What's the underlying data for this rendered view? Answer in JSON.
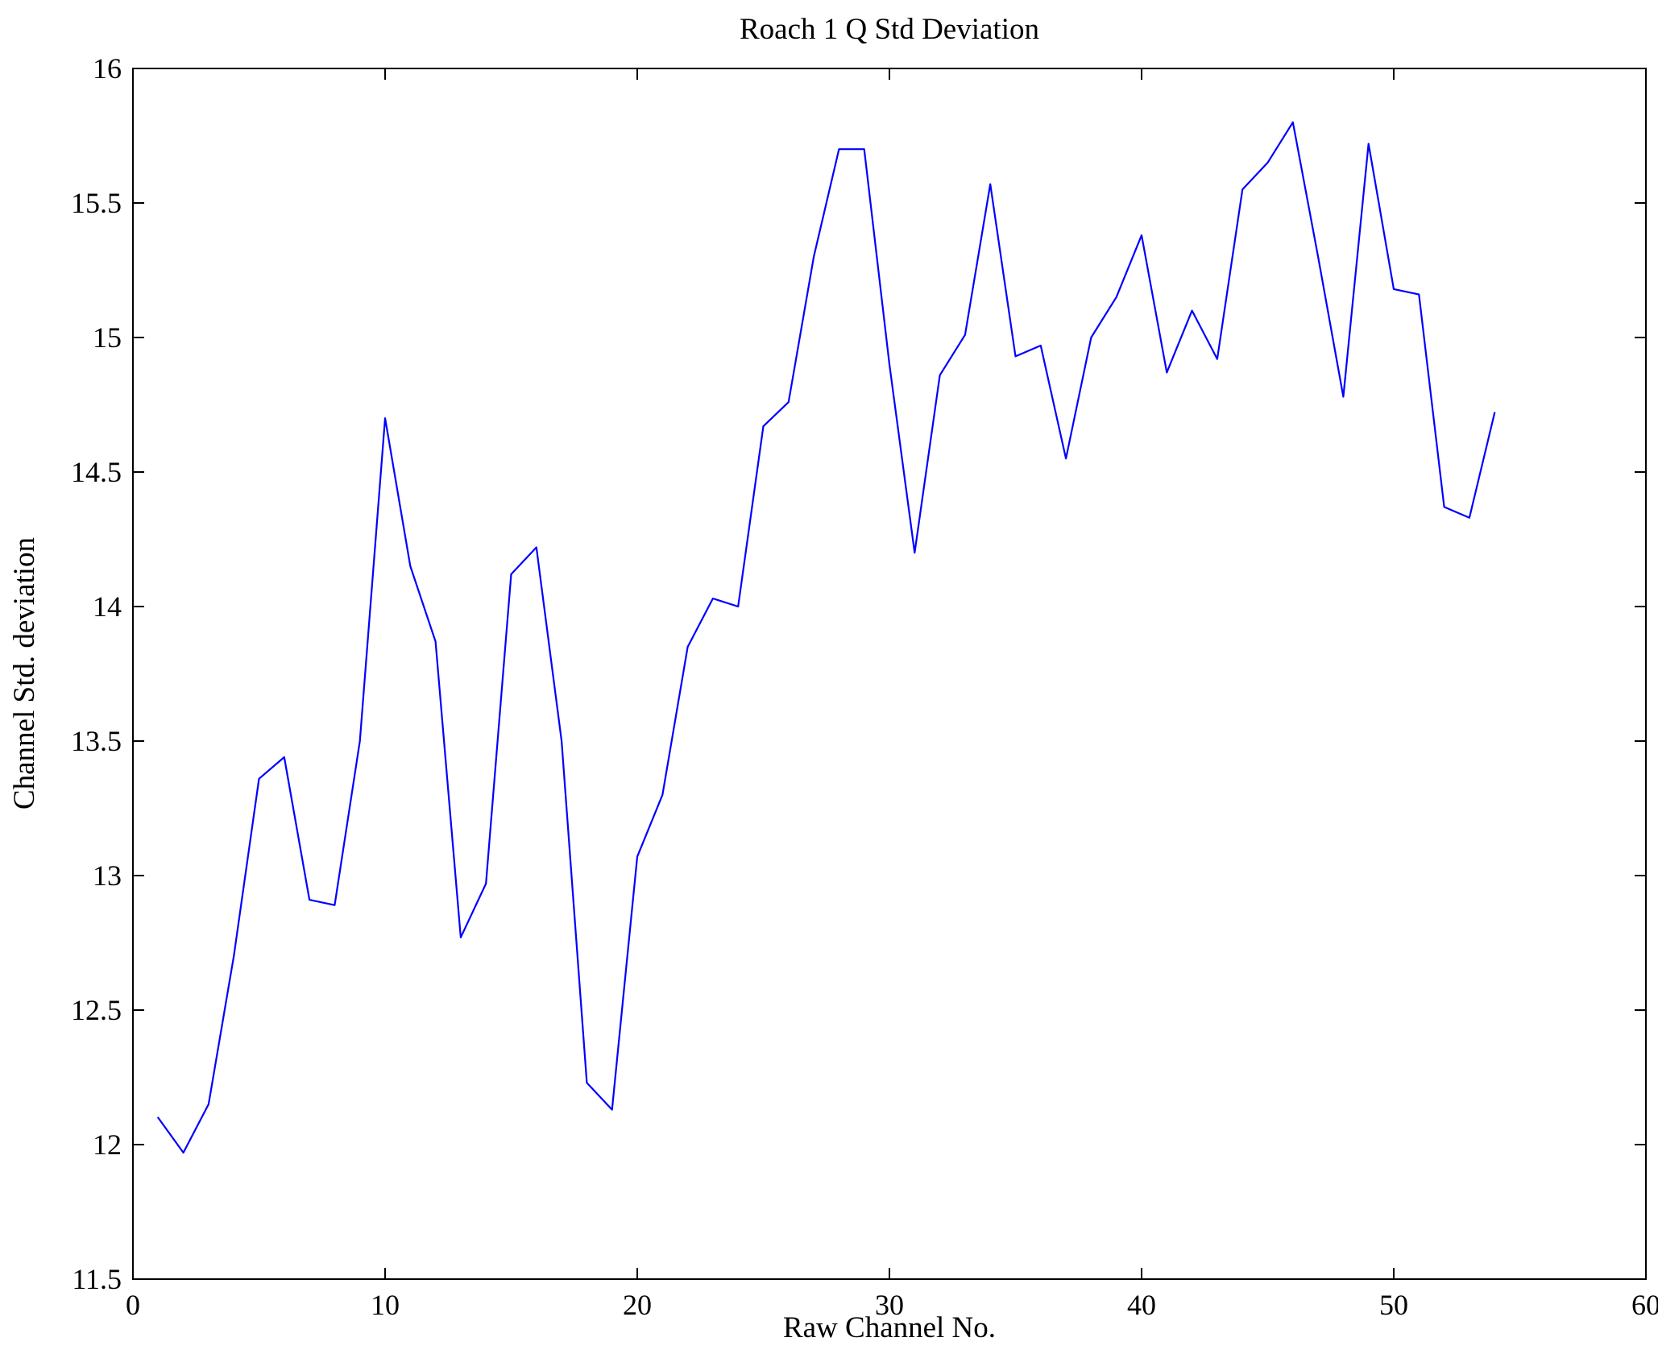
{
  "chart_data": {
    "type": "line",
    "title": "Roach 1 Q Std Deviation",
    "xlabel": "Raw Channel No.",
    "ylabel": "Channel Std. deviation",
    "xlim": [
      0,
      60
    ],
    "ylim": [
      11.5,
      16
    ],
    "x_ticks": [
      0,
      10,
      20,
      30,
      40,
      50,
      60
    ],
    "y_ticks": [
      11.5,
      12,
      12.5,
      13,
      13.5,
      14,
      14.5,
      15,
      15.5,
      16
    ],
    "grid": false,
    "legend": "none",
    "line_color": "#0000ff",
    "axis_color": "#000000",
    "series": [
      {
        "name": "Q std deviation",
        "x": [
          1,
          2,
          3,
          4,
          5,
          6,
          7,
          8,
          9,
          10,
          11,
          12,
          13,
          14,
          15,
          16,
          17,
          18,
          19,
          20,
          21,
          22,
          23,
          24,
          25,
          26,
          27,
          28,
          29,
          30,
          31,
          32,
          33,
          34,
          35,
          36,
          37,
          38,
          39,
          40,
          41,
          42,
          43,
          44,
          45,
          46,
          47,
          48,
          49,
          50,
          51,
          52,
          53,
          54
        ],
        "values": [
          12.1,
          11.97,
          12.15,
          12.7,
          13.36,
          13.44,
          12.91,
          12.89,
          13.5,
          14.7,
          14.15,
          13.87,
          12.77,
          12.97,
          14.12,
          14.22,
          13.5,
          12.23,
          12.13,
          13.07,
          13.3,
          13.85,
          14.03,
          14.0,
          14.67,
          14.76,
          15.3,
          15.7,
          15.7,
          14.9,
          14.2,
          14.86,
          15.01,
          15.57,
          14.93,
          14.97,
          14.55,
          15.0,
          15.15,
          15.38,
          14.87,
          15.1,
          14.92,
          15.55,
          15.65,
          15.8,
          15.3,
          14.78,
          15.72,
          15.18,
          15.16,
          14.37,
          14.33,
          14.72
        ]
      }
    ]
  }
}
